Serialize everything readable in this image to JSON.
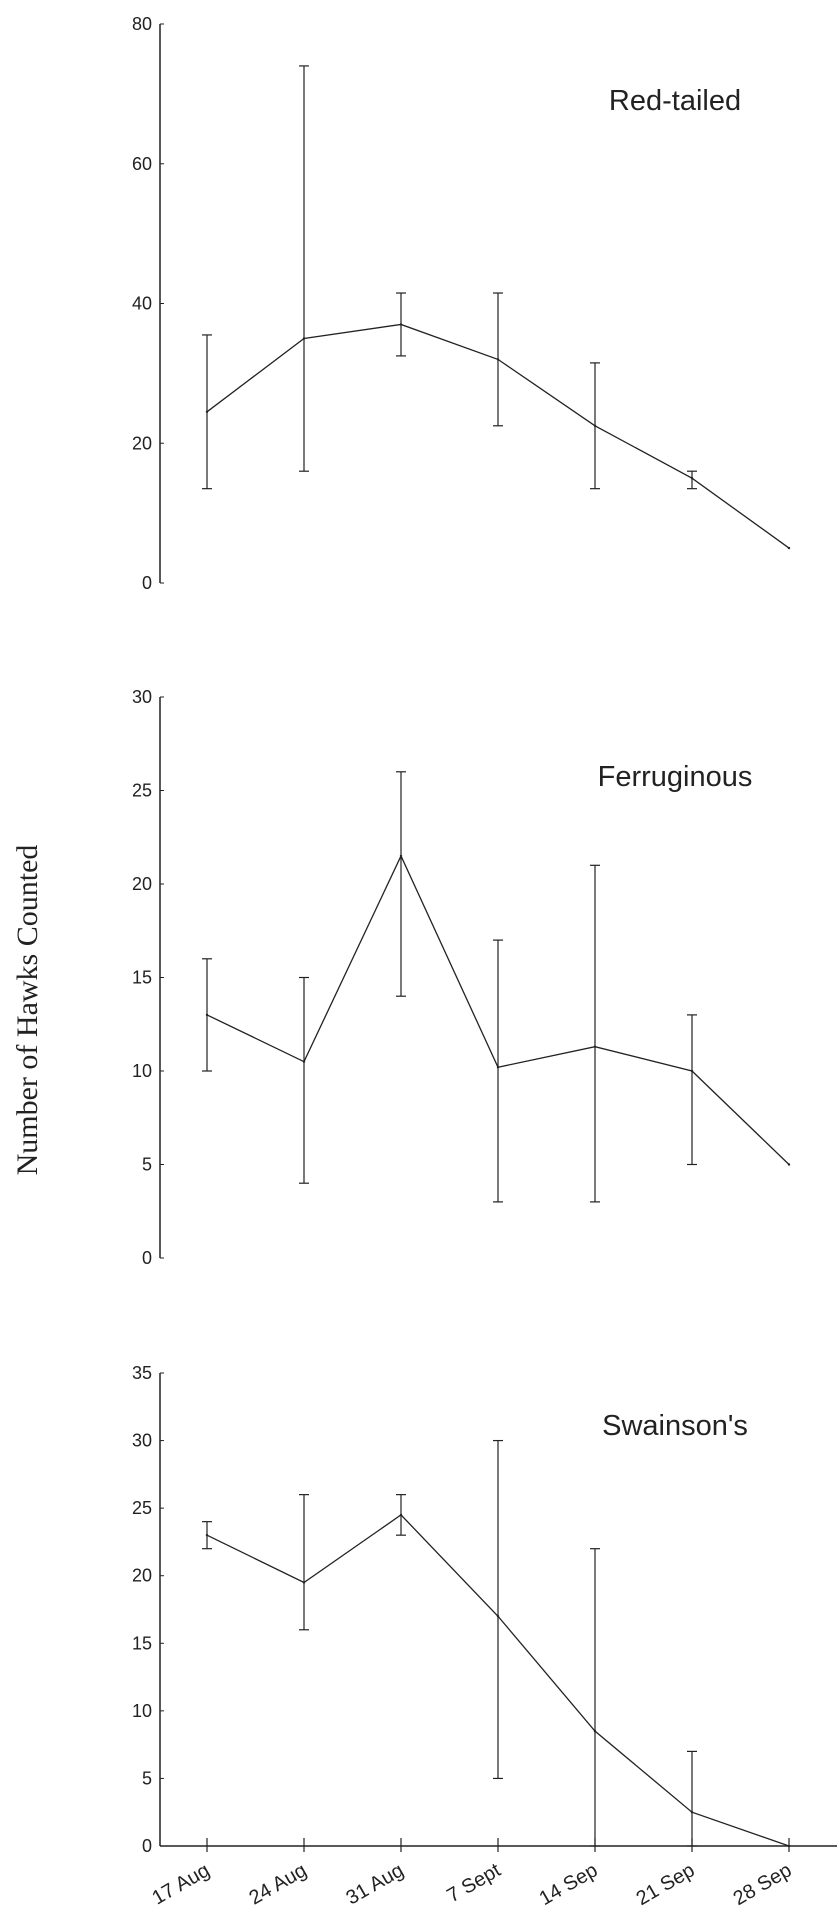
{
  "figure": {
    "ylabel": "Number of Hawks Counted",
    "categories": [
      "17 Aug",
      "24 Aug",
      "31 Aug",
      "7 Sept",
      "14 Sep",
      "21 Sep",
      "28 Sep"
    ],
    "line_color": "#222222"
  },
  "chart_data": [
    {
      "type": "line",
      "title": "Red-tailed",
      "categories": [
        "17 Aug",
        "24 Aug",
        "31 Aug",
        "7 Sept",
        "14 Sep",
        "21 Sep",
        "28 Sep"
      ],
      "series": [
        {
          "values": [
            24.5,
            35,
            37,
            32,
            22.5,
            15,
            5
          ],
          "error_low": [
            13.5,
            16,
            32.5,
            22.5,
            13.5,
            13.5,
            5
          ],
          "error_high": [
            35.5,
            74,
            41.5,
            41.5,
            31.5,
            16,
            5
          ]
        }
      ],
      "yticks": [
        0,
        20,
        40,
        60,
        80
      ],
      "ylim": [
        0,
        80
      ]
    },
    {
      "type": "line",
      "title": "Ferruginous",
      "categories": [
        "17 Aug",
        "24 Aug",
        "31 Aug",
        "7 Sept",
        "14 Sep",
        "21 Sep",
        "28 Sep"
      ],
      "series": [
        {
          "values": [
            13,
            10.5,
            21.5,
            10.2,
            11.3,
            10,
            5
          ],
          "error_low": [
            10,
            4,
            14,
            3,
            3,
            5,
            5
          ],
          "error_high": [
            16,
            15,
            26,
            17,
            21,
            13,
            5
          ]
        }
      ],
      "yticks": [
        0,
        5,
        10,
        15,
        20,
        25,
        30
      ],
      "ylim": [
        0,
        30
      ]
    },
    {
      "type": "line",
      "title": "Swainson's",
      "categories": [
        "17 Aug",
        "24 Aug",
        "31 Aug",
        "7 Sept",
        "14 Sep",
        "21 Sep",
        "28 Sep"
      ],
      "series": [
        {
          "values": [
            23,
            19.5,
            24.5,
            17,
            8.5,
            2.5,
            0
          ],
          "error_low": [
            22,
            16,
            23,
            5,
            0,
            0,
            0
          ],
          "error_high": [
            24,
            26,
            26,
            30,
            22,
            7,
            0
          ]
        }
      ],
      "yticks": [
        0,
        5,
        10,
        15,
        20,
        25,
        30,
        35
      ],
      "ylim": [
        0,
        35
      ]
    }
  ]
}
